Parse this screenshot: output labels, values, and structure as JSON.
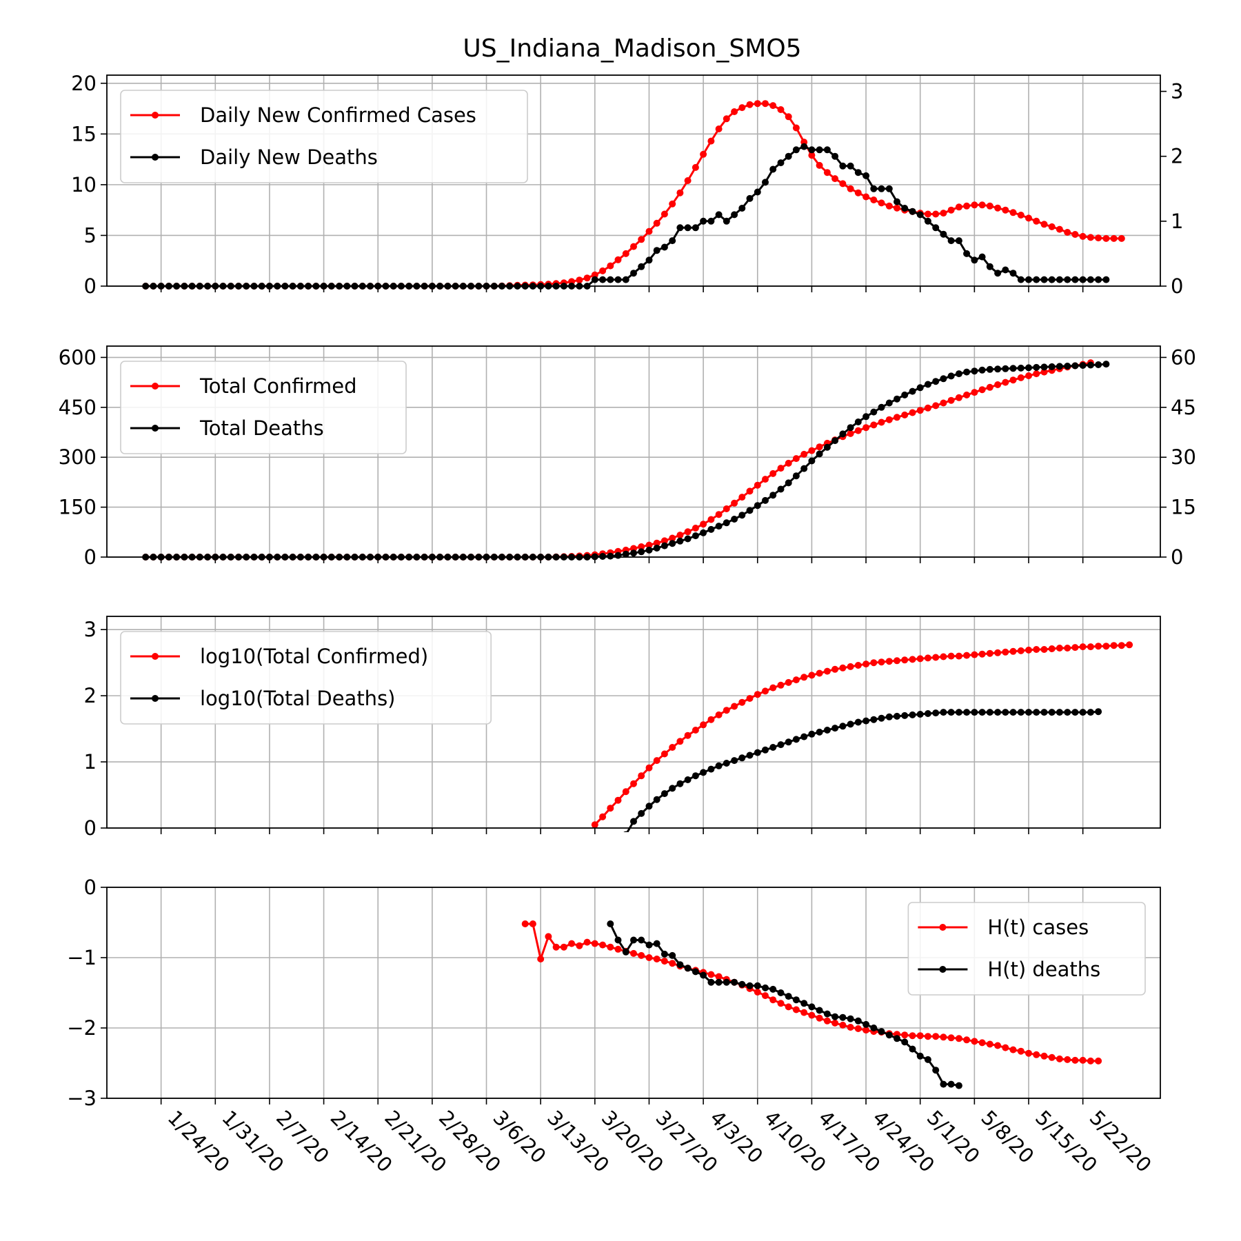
{
  "title": "US_Indiana_Madison_SMO5",
  "colors": {
    "cases": "#ff0000",
    "deaths": "#000000",
    "grid": "#b0b0b0"
  },
  "x_tick_labels": [
    "1/24/20",
    "1/31/20",
    "2/7/20",
    "2/14/20",
    "2/21/20",
    "2/28/20",
    "3/6/20",
    "3/13/20",
    "3/20/20",
    "3/27/20",
    "4/3/20",
    "4/10/20",
    "4/17/20",
    "4/24/20",
    "5/1/20",
    "5/8/20",
    "5/15/20",
    "5/22/20"
  ],
  "chart_data": [
    {
      "type": "line",
      "panel": "daily",
      "x_dates": {
        "first": "1/22/20",
        "last": "5/25/20"
      },
      "xlim": [
        "1/17/20",
        "6/1/20"
      ],
      "ylim_left": [
        0,
        20.8
      ],
      "yticks_left": [
        0,
        5,
        10,
        15,
        20
      ],
      "ylim_right": [
        0,
        3.25
      ],
      "yticks_right": [
        0,
        1,
        2,
        3
      ],
      "grid": true,
      "legend_position": "top-left",
      "series": [
        {
          "name": "Daily New Confirmed Cases",
          "axis": "left",
          "color": "#ff0000",
          "values": [
            0,
            0,
            0,
            0,
            0,
            0,
            0,
            0,
            0,
            0,
            0,
            0,
            0,
            0,
            0,
            0,
            0,
            0,
            0,
            0,
            0,
            0,
            0,
            0,
            0,
            0,
            0,
            0,
            0,
            0,
            0,
            0,
            0,
            0,
            0,
            0,
            0,
            0,
            0,
            0,
            0,
            0,
            0,
            0,
            0,
            0,
            0.02,
            0.05,
            0.08,
            0.1,
            0.12,
            0.16,
            0.2,
            0.25,
            0.32,
            0.45,
            0.6,
            0.8,
            1.1,
            1.5,
            2.0,
            2.6,
            3.2,
            3.9,
            4.6,
            5.4,
            6.2,
            7.1,
            8.1,
            9.2,
            10.4,
            11.7,
            13.0,
            14.3,
            15.5,
            16.5,
            17.2,
            17.6,
            17.9,
            18.0,
            18.0,
            17.8,
            17.4,
            16.7,
            15.6,
            14.2,
            12.9,
            11.9,
            11.2,
            10.6,
            10.1,
            9.6,
            9.2,
            8.8,
            8.5,
            8.2,
            7.9,
            7.7,
            7.5,
            7.35,
            7.2,
            7.1,
            7.1,
            7.2,
            7.5,
            7.8,
            7.9,
            8.0,
            8.0,
            7.9,
            7.7,
            7.5,
            7.25,
            7.0,
            6.7,
            6.4,
            6.1,
            5.85,
            5.6,
            5.3,
            5.1,
            4.9,
            4.8,
            4.75,
            4.7,
            4.7,
            4.7
          ]
        },
        {
          "name": "Daily New Deaths",
          "axis": "right",
          "color": "#000000",
          "values": [
            0,
            0,
            0,
            0,
            0,
            0,
            0,
            0,
            0,
            0,
            0,
            0,
            0,
            0,
            0,
            0,
            0,
            0,
            0,
            0,
            0,
            0,
            0,
            0,
            0,
            0,
            0,
            0,
            0,
            0,
            0,
            0,
            0,
            0,
            0,
            0,
            0,
            0,
            0,
            0,
            0,
            0,
            0,
            0,
            0,
            0,
            0,
            0,
            0,
            0,
            0,
            0,
            0,
            0,
            0,
            0,
            0,
            0,
            0.1,
            0.1,
            0.1,
            0.1,
            0.1,
            0.2,
            0.3,
            0.4,
            0.55,
            0.6,
            0.7,
            0.9,
            0.9,
            0.9,
            1.0,
            1.0,
            1.1,
            1.0,
            1.1,
            1.2,
            1.35,
            1.45,
            1.6,
            1.8,
            1.9,
            2.0,
            2.1,
            2.15,
            2.1,
            2.1,
            2.1,
            2.0,
            1.85,
            1.85,
            1.75,
            1.7,
            1.5,
            1.5,
            1.5,
            1.3,
            1.2,
            1.15,
            1.1,
            1.0,
            0.9,
            0.8,
            0.7,
            0.7,
            0.5,
            0.4,
            0.45,
            0.3,
            0.2,
            0.25,
            0.2,
            0.1,
            0.1,
            0.1,
            0.1,
            0.1,
            0.1,
            0.1,
            0.1,
            0.1,
            0.1,
            0.1,
            0.1
          ]
        }
      ]
    },
    {
      "type": "line",
      "panel": "total",
      "x_dates": {
        "first": "1/22/20",
        "last": "5/25/20"
      },
      "xlim": [
        "1/17/20",
        "6/1/20"
      ],
      "ylim_left": [
        0,
        634
      ],
      "yticks_left": [
        0,
        150,
        300,
        450,
        600
      ],
      "ylim_right": [
        0,
        63.4
      ],
      "yticks_right": [
        0,
        15,
        30,
        45,
        60
      ],
      "grid": true,
      "legend_position": "top-left",
      "series": [
        {
          "name": "Total Confirmed",
          "axis": "left",
          "color": "#ff0000",
          "values": [
            0,
            0,
            0,
            0,
            0,
            0,
            0,
            0,
            0,
            0,
            0,
            0,
            0,
            0,
            0,
            0,
            0,
            0,
            0,
            0,
            0,
            0,
            0,
            0,
            0,
            0,
            0,
            0,
            0,
            0,
            0,
            0,
            0,
            0,
            0,
            0,
            0,
            0,
            0,
            0,
            0,
            0,
            0,
            0,
            0,
            0,
            0,
            0,
            0,
            0,
            0,
            0,
            0,
            0.5,
            1.2,
            2,
            3.3,
            5,
            7,
            10,
            13,
            17,
            21,
            26,
            31,
            36,
            42,
            49,
            57,
            66,
            76,
            87,
            99,
            113,
            128,
            145,
            162,
            180,
            198,
            216,
            234,
            251,
            267,
            282,
            296,
            309,
            320,
            331,
            342,
            352,
            362,
            371,
            380,
            389,
            397,
            405,
            413,
            420,
            427,
            434,
            441,
            448,
            455,
            463,
            471,
            479,
            487,
            495,
            503,
            510,
            518,
            525,
            532,
            539,
            545,
            551,
            556,
            561,
            566,
            571,
            575,
            579,
            584
          ]
        },
        {
          "name": "Total Deaths",
          "axis": "right",
          "color": "#000000",
          "values": [
            0,
            0,
            0,
            0,
            0,
            0,
            0,
            0,
            0,
            0,
            0,
            0,
            0,
            0,
            0,
            0,
            0,
            0,
            0,
            0,
            0,
            0,
            0,
            0,
            0,
            0,
            0,
            0,
            0,
            0,
            0,
            0,
            0,
            0,
            0,
            0,
            0,
            0,
            0,
            0,
            0,
            0,
            0,
            0,
            0,
            0,
            0,
            0,
            0,
            0,
            0,
            0,
            0,
            0,
            0,
            0,
            0,
            0,
            0.1,
            0.2,
            0.3,
            0.5,
            0.9,
            1.2,
            1.6,
            2.1,
            2.7,
            3.4,
            4.1,
            4.8,
            5.5,
            6.4,
            7.3,
            8.3,
            9.3,
            10.3,
            11.4,
            12.6,
            14.0,
            15.5,
            17.0,
            18.6,
            20.4,
            22.3,
            24.4,
            26.6,
            28.9,
            31.0,
            33.0,
            35.0,
            37.0,
            38.9,
            40.6,
            42.2,
            43.6,
            45.0,
            46.3,
            47.5,
            48.7,
            49.8,
            50.9,
            51.9,
            52.8,
            53.6,
            54.4,
            55.1,
            55.6,
            55.9,
            56.2,
            56.4,
            56.5,
            56.6,
            56.7,
            56.8,
            56.9,
            57.0,
            57.1,
            57.2,
            57.3,
            57.4,
            57.5,
            57.6,
            57.7,
            57.8,
            58.0
          ]
        }
      ]
    },
    {
      "type": "line",
      "panel": "log",
      "x_dates": {
        "first": "1/22/20",
        "last": "5/25/20"
      },
      "xlim": [
        "1/17/20",
        "6/1/20"
      ],
      "ylim": [
        0,
        3.2
      ],
      "yticks": [
        0,
        1,
        2,
        3
      ],
      "grid": true,
      "legend_position": "top-left",
      "series": [
        {
          "name": "log10(Total Confirmed)",
          "color": "#ff0000",
          "x_start": "3/20/20",
          "values": [
            0.05,
            0.17,
            0.3,
            0.42,
            0.55,
            0.67,
            0.79,
            0.91,
            1.02,
            1.12,
            1.22,
            1.31,
            1.4,
            1.48,
            1.56,
            1.64,
            1.71,
            1.78,
            1.84,
            1.9,
            1.96,
            2.02,
            2.07,
            2.12,
            2.16,
            2.2,
            2.24,
            2.28,
            2.31,
            2.34,
            2.37,
            2.4,
            2.42,
            2.44,
            2.46,
            2.48,
            2.5,
            2.51,
            2.52,
            2.53,
            2.54,
            2.55,
            2.56,
            2.57,
            2.58,
            2.59,
            2.6,
            2.6,
            2.61,
            2.62,
            2.63,
            2.64,
            2.65,
            2.66,
            2.67,
            2.68,
            2.69,
            2.7,
            2.7,
            2.71,
            2.72,
            2.72,
            2.73,
            2.74,
            2.74,
            2.75,
            2.75,
            2.76,
            2.76,
            2.77
          ]
        },
        {
          "name": "log10(Total Deaths)",
          "color": "#000000",
          "x_start": "3/22/20",
          "values": [
            -0.5,
            -0.3,
            -0.1,
            0.1,
            0.22,
            0.33,
            0.43,
            0.52,
            0.6,
            0.67,
            0.73,
            0.79,
            0.84,
            0.89,
            0.94,
            0.98,
            1.02,
            1.06,
            1.1,
            1.14,
            1.18,
            1.22,
            1.26,
            1.3,
            1.34,
            1.38,
            1.42,
            1.45,
            1.48,
            1.51,
            1.54,
            1.57,
            1.6,
            1.62,
            1.64,
            1.66,
            1.68,
            1.69,
            1.7,
            1.71,
            1.72,
            1.73,
            1.74,
            1.75,
            1.75,
            1.75,
            1.75,
            1.75,
            1.75,
            1.75,
            1.75,
            1.75,
            1.75,
            1.75,
            1.75,
            1.75,
            1.75,
            1.75,
            1.75,
            1.75,
            1.75,
            1.75,
            1.75,
            1.76
          ]
        }
      ]
    },
    {
      "type": "line",
      "panel": "ht",
      "x_dates": {
        "first": "3/11/20",
        "last": "5/24/20"
      },
      "xlim": [
        "1/17/20",
        "6/1/20"
      ],
      "ylim": [
        -3,
        0
      ],
      "yticks": [
        -3,
        -2,
        -1,
        0
      ],
      "ytick_labels": [
        "−3",
        "−2",
        "−1",
        "0"
      ],
      "grid": true,
      "legend_position": "top-right",
      "series": [
        {
          "name": "H(t) cases",
          "color": "#ff0000",
          "x_start": "3/11/20",
          "values": [
            -0.52,
            -0.52,
            -1.02,
            -0.7,
            -0.85,
            -0.85,
            -0.8,
            -0.83,
            -0.78,
            -0.8,
            -0.82,
            -0.85,
            -0.88,
            -0.91,
            -0.94,
            -0.97,
            -1.0,
            -1.02,
            -1.05,
            -1.08,
            -1.12,
            -1.15,
            -1.18,
            -1.21,
            -1.24,
            -1.27,
            -1.31,
            -1.35,
            -1.39,
            -1.44,
            -1.49,
            -1.54,
            -1.6,
            -1.65,
            -1.7,
            -1.74,
            -1.78,
            -1.82,
            -1.86,
            -1.9,
            -1.93,
            -1.96,
            -1.99,
            -2.01,
            -2.03,
            -2.05,
            -2.06,
            -2.08,
            -2.09,
            -2.1,
            -2.11,
            -2.11,
            -2.12,
            -2.12,
            -2.13,
            -2.14,
            -2.15,
            -2.17,
            -2.19,
            -2.21,
            -2.23,
            -2.25,
            -2.28,
            -2.31,
            -2.33,
            -2.36,
            -2.38,
            -2.4,
            -2.42,
            -2.44,
            -2.45,
            -2.46,
            -2.46,
            -2.47,
            -2.47
          ]
        },
        {
          "name": "H(t) deaths",
          "color": "#000000",
          "x_start": "3/22/20",
          "values": [
            -0.52,
            -0.75,
            -0.92,
            -0.75,
            -0.75,
            -0.82,
            -0.8,
            -0.95,
            -0.97,
            -1.1,
            -1.15,
            -1.2,
            -1.25,
            -1.35,
            -1.35,
            -1.35,
            -1.35,
            -1.38,
            -1.4,
            -1.4,
            -1.43,
            -1.45,
            -1.5,
            -1.55,
            -1.6,
            -1.65,
            -1.7,
            -1.75,
            -1.8,
            -1.84,
            -1.85,
            -1.87,
            -1.9,
            -1.95,
            -2.0,
            -2.05,
            -2.1,
            -2.15,
            -2.2,
            -2.3,
            -2.4,
            -2.45,
            -2.6,
            -2.8,
            -2.8,
            -2.82
          ]
        }
      ]
    }
  ]
}
